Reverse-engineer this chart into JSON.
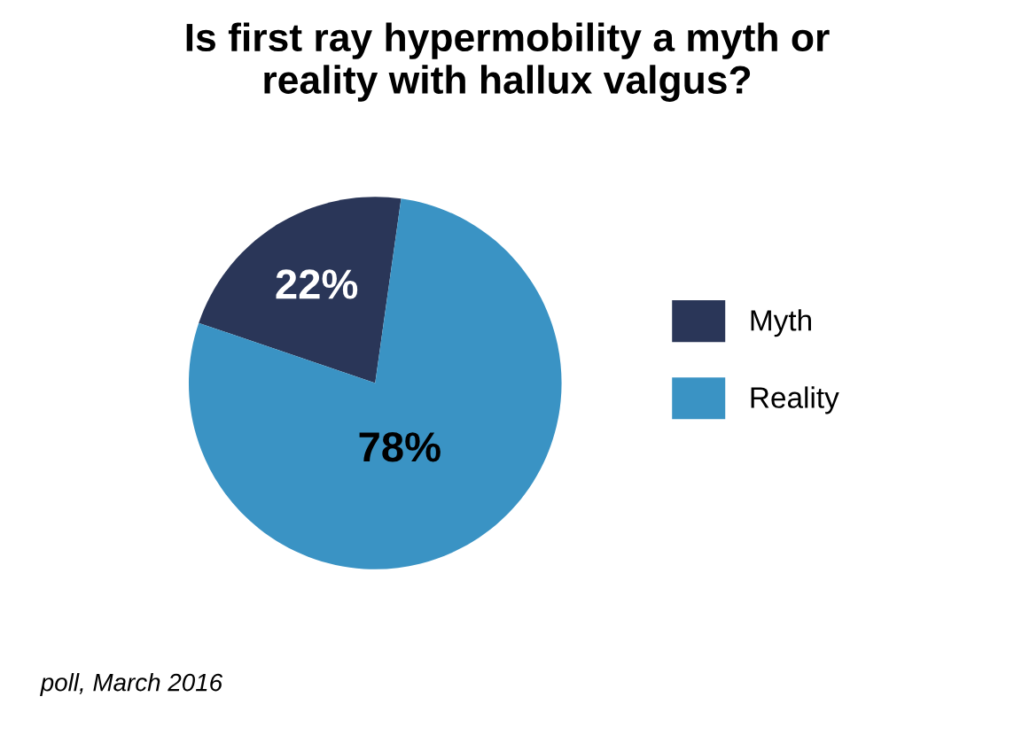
{
  "chart_data": {
    "type": "pie",
    "title": "Is first ray hypermobility a myth or\nreality with hallux valgus?",
    "categories": [
      "Myth",
      "Reality"
    ],
    "values": [
      22,
      78
    ],
    "colors": [
      "#2a3658",
      "#3a93c4"
    ],
    "value_labels": [
      "22%",
      "78%"
    ],
    "legend": "right",
    "annotations": [
      "poll, March 2016"
    ]
  }
}
